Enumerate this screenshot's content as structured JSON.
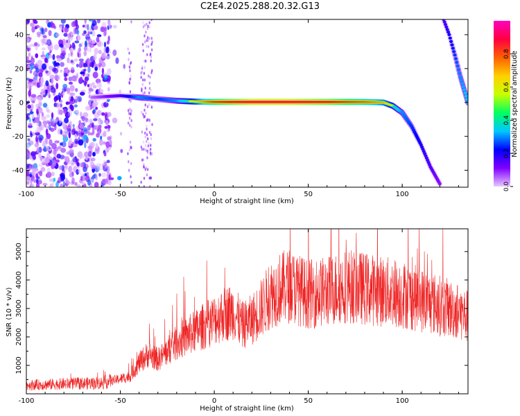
{
  "title": "C2E4.2025.288.20.32.G13",
  "colors": {
    "snr_line": "#ee2222",
    "track": "#e83030",
    "frame": "#000000"
  },
  "chart_data": [
    {
      "type": "heatmap",
      "name": "spectrogram",
      "xlabel": "Height of straight line (km)",
      "ylabel": "Frequency (Hz)",
      "xlim": [
        -100,
        135
      ],
      "ylim": [
        -50,
        49
      ],
      "xticks": [
        -100,
        -50,
        0,
        50,
        100
      ],
      "yticks": [
        -40,
        -20,
        0,
        20,
        40
      ],
      "colorbar": {
        "label": "Normalized spectral amplitude",
        "range": [
          0,
          1
        ],
        "ticks": [
          "0.0",
          "0.2",
          "0.4",
          "0.6",
          "0.8"
        ],
        "tick_values": [
          0.0,
          0.2,
          0.4,
          0.6,
          0.8
        ],
        "colors": [
          "#e8c8ff",
          "#8000ff",
          "#0000ff",
          "#00c8ff",
          "#00ff60",
          "#c8ff00",
          "#ffd000",
          "#ff6000",
          "#ff0040",
          "#ff00c0"
        ]
      },
      "main_track": {
        "x": [
          -65,
          -50,
          -40,
          -30,
          -20,
          -10,
          0,
          20,
          40,
          60,
          80,
          90,
          95,
          100,
          105,
          110,
          115,
          120
        ],
        "y": [
          3,
          4,
          3,
          2,
          1,
          0.5,
          0.3,
          0.3,
          0.3,
          0.3,
          0.3,
          0,
          -2,
          -6,
          -14,
          -25,
          -38,
          -48
        ],
        "amplitude": [
          0.25,
          0.35,
          0.5,
          0.45,
          0.5,
          0.65,
          0.85,
          0.95,
          0.95,
          0.9,
          0.8,
          0.7,
          0.6,
          0.5,
          0.45,
          0.4,
          0.35,
          0.3
        ]
      },
      "aliased_track": {
        "x": [
          122,
          125,
          128,
          131,
          135
        ],
        "y": [
          49,
          40,
          28,
          15,
          0
        ],
        "amplitude": [
          0.35,
          0.4,
          0.45,
          0.5,
          0.55
        ]
      },
      "noise_region_km": [
        -100,
        -55
      ]
    },
    {
      "type": "line",
      "name": "snr",
      "xlabel": "Height of straight line (km)",
      "ylabel": "SNR (10 * v/v)",
      "xlim": [
        -100,
        135
      ],
      "ylim": [
        0,
        5800
      ],
      "xticks": [
        -100,
        -50,
        0,
        50,
        100
      ],
      "yticks": [
        1000,
        2000,
        3000,
        4000,
        5000
      ],
      "envelope": {
        "x": [
          -100,
          -80,
          -60,
          -45,
          -40,
          -35,
          -30,
          -20,
          -10,
          0,
          5,
          10,
          15,
          20,
          25,
          30,
          35,
          40,
          50,
          60,
          70,
          80,
          90,
          100,
          110,
          120,
          130,
          135
        ],
        "y": [
          300,
          350,
          380,
          600,
          1100,
          1400,
          1200,
          1800,
          2200,
          2600,
          2800,
          2900,
          2400,
          2600,
          3000,
          3500,
          3700,
          3800,
          3500,
          3600,
          3800,
          3700,
          3600,
          3500,
          3300,
          3100,
          2900,
          2700
        ]
      }
    }
  ]
}
